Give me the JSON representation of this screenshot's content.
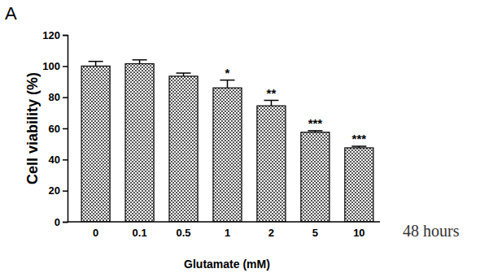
{
  "chart_data": {
    "type": "bar",
    "title": "A",
    "x_label": "Glutamate (mM)",
    "y_label": "Cell viability (%)",
    "categories": [
      "0",
      "0.1",
      "0.5",
      "1",
      "2",
      "5",
      "10"
    ],
    "values": [
      100,
      101.5,
      93.5,
      86,
      74.5,
      57.5,
      47.5
    ],
    "errors": [
      3,
      2.5,
      2,
      5,
      3.5,
      1,
      1
    ],
    "significance": [
      null,
      null,
      null,
      "*",
      "**",
      "***",
      "***"
    ],
    "annotations": [
      "48 hours"
    ],
    "color": "#555555",
    "ylim": [
      0,
      120
    ],
    "yticks": [
      0,
      20,
      40,
      60,
      80,
      100,
      120
    ],
    "grid": false
  }
}
